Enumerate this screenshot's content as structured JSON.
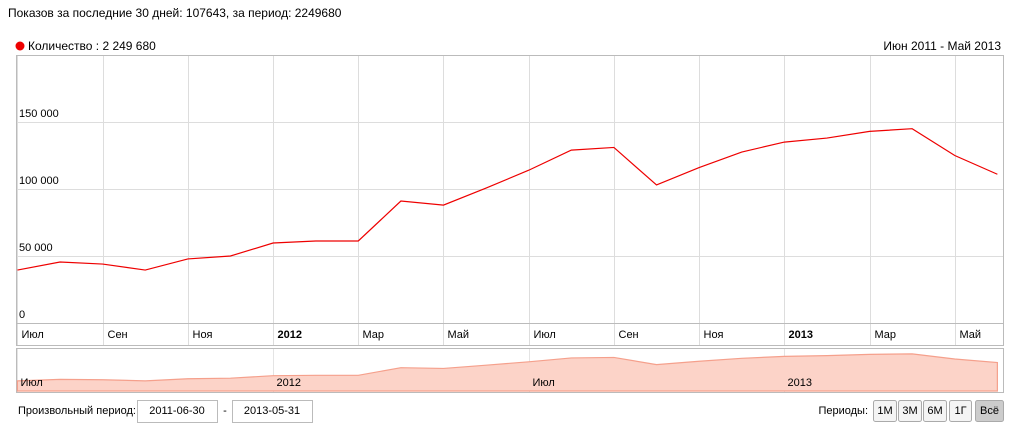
{
  "chart_data": {
    "type": "line",
    "title": "Показов за последние 30 дней: 107643, за период: 2249680",
    "subtitle": "Июн 2011 - Май 2013",
    "x": [
      "2011-06",
      "2011-07",
      "2011-08",
      "2011-09",
      "2011-10",
      "2011-11",
      "2011-12",
      "2012-01",
      "2012-02",
      "2012-03",
      "2012-04",
      "2012-05",
      "2012-06",
      "2012-07",
      "2012-08",
      "2012-09",
      "2012-10",
      "2012-11",
      "2012-12",
      "2013-01",
      "2013-02",
      "2013-03",
      "2013-04",
      "2013-05"
    ],
    "series": [
      {
        "name": "Количество : 2 249 680",
        "color": "#ee0000",
        "values": [
          39500,
          45500,
          44000,
          39500,
          47800,
          50000,
          59700,
          61200,
          61200,
          91000,
          88000,
          100700,
          114000,
          129000,
          131000,
          103000,
          116000,
          127600,
          135000,
          138000,
          143000,
          145000,
          125000,
          111000
        ]
      }
    ],
    "xlim": [
      "2011-06-30",
      "2013-05-31"
    ],
    "ylim": [
      0,
      200000
    ],
    "yticks": [
      0,
      {
        "value": 50000,
        "label": "50 000"
      },
      {
        "value": 100000,
        "label": "100 000"
      },
      {
        "value": 150000,
        "label": "150 000"
      }
    ],
    "xticks": [
      {
        "value": "2011-07",
        "label": "Июл"
      },
      {
        "value": "2011-09",
        "label": "Сен"
      },
      {
        "value": "2011-11",
        "label": "Ноя"
      },
      {
        "value": "2012-01",
        "label": "2012"
      },
      {
        "value": "2012-03",
        "label": "Мар"
      },
      {
        "value": "2012-05",
        "label": "Май"
      },
      {
        "value": "2012-07",
        "label": "Июл"
      },
      {
        "value": "2012-09",
        "label": "Сен"
      },
      {
        "value": "2012-11",
        "label": "Ноя"
      },
      {
        "value": "2013-01",
        "label": "2013"
      },
      {
        "value": "2013-03",
        "label": "Мар"
      },
      {
        "value": "2013-05",
        "label": "Май"
      }
    ],
    "navigator_ticks": [
      {
        "value": "2011-07",
        "label": "Июл"
      },
      {
        "value": "2012-01",
        "label": "2012"
      },
      {
        "value": "2012-07",
        "label": "Июл"
      },
      {
        "value": "2013-01",
        "label": "2013"
      }
    ],
    "grid": true
  },
  "controls": {
    "period_label": "Произвольный период:",
    "separator": "-",
    "periods_label": "Периоды:",
    "periods": [
      "1М",
      "3М",
      "6М",
      "1Г",
      "Всё"
    ],
    "active_period": 4
  }
}
